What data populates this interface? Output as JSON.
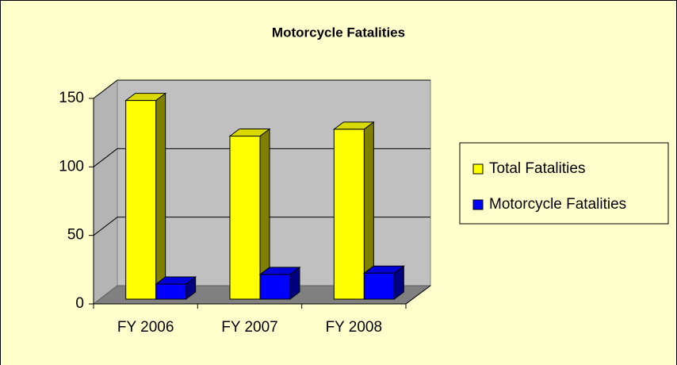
{
  "chart_data": {
    "type": "bar3d",
    "title": "Motorcycle Fatalities",
    "categories": [
      "FY 2006",
      "FY 2007",
      "FY 2008"
    ],
    "series": [
      {
        "name": "Total Fatalities",
        "color": "#ffff00",
        "values": [
          145,
          119,
          124
        ]
      },
      {
        "name": "Motorcycle Fatalities",
        "color": "#0000ff",
        "values": [
          11,
          18,
          19
        ]
      }
    ],
    "ylim": [
      0,
      150
    ],
    "yticks": [
      0,
      50,
      100,
      150
    ],
    "grid": true,
    "legend": "right"
  }
}
